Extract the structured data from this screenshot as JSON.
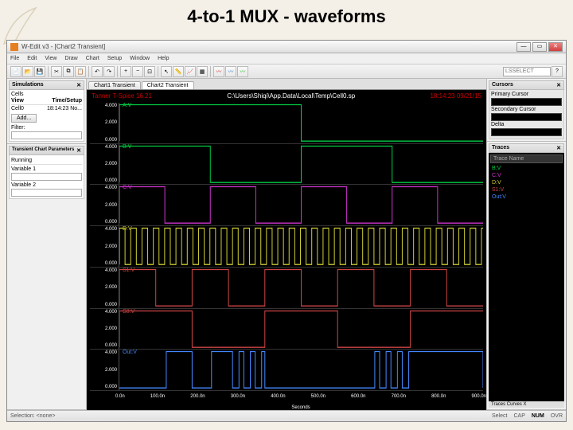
{
  "slide": {
    "title": "4-to-1 MUX - waveforms"
  },
  "window": {
    "title": "W-Edit v3 - [Chart2 Transient]",
    "menus": [
      "File",
      "Edit",
      "View",
      "Draw",
      "Chart",
      "Setup",
      "Window",
      "Help"
    ],
    "search_placeholder": "LSSELECT"
  },
  "tabs": [
    "Chart1 Transient",
    "Chart2 Transient"
  ],
  "chart_header": {
    "tanner": "Tanner T-Spice 16.21",
    "path": "C:\\Users\\Shiqi\\App.Data\\Local\\Temp\\Cell0.sp",
    "timestamp": "18:14:23 09/21/15"
  },
  "yaxis": {
    "ticks": [
      "4.000",
      "2.000",
      "0.000"
    ],
    "label": "Volts"
  },
  "xaxis": {
    "ticks": [
      "0.0n",
      "100.0n",
      "200.0n",
      "300.0n",
      "400.0n",
      "500.0n",
      "600.0n",
      "700.0n",
      "800.0n",
      "900.0n"
    ],
    "label": "Seconds"
  },
  "waves": [
    {
      "name": "A:V",
      "color": "#00cc44",
      "period": 900,
      "type": "clock"
    },
    {
      "name": "B:V",
      "color": "#00cc44",
      "period": 450,
      "type": "clock"
    },
    {
      "name": "C:V",
      "color": "#cc33cc",
      "period": 225,
      "type": "clock"
    },
    {
      "name": "D:V",
      "color": "#cccc33",
      "period": 28,
      "type": "clock"
    },
    {
      "name": "S1:V",
      "color": "#cc4444",
      "period": 180,
      "type": "clock"
    },
    {
      "name": "S0:V",
      "color": "#cc4444",
      "period": 360,
      "type": "clock"
    },
    {
      "name": "Out:V",
      "color": "#4488ff",
      "period": 0,
      "type": "mux"
    }
  ],
  "left_panel": {
    "sim_title": "Simulations",
    "cells_label": "Cells",
    "view_col": "View",
    "time_col": "Time/Setup",
    "cell_name": "Cell0",
    "cell_time": "18:14:23 No...",
    "add_btn": "Add...",
    "filter_label": "Filter:",
    "params_title": "Transient Chart Parameters",
    "running_label": "Running",
    "var1_label": "Variable 1",
    "var2_label": "Variable 2"
  },
  "right_panel": {
    "cursors_title": "Cursors",
    "primary_label": "Primary Cursor",
    "secondary_label": "Secondary Cursor",
    "delta_label": "Delta",
    "traces_title": "Traces",
    "trace_header": "Trace Name",
    "traces": [
      {
        "label": "B:V",
        "color": "#00cc44"
      },
      {
        "label": "C:V",
        "color": "#cc33cc"
      },
      {
        "label": "D:V",
        "color": "#cccc33"
      },
      {
        "label": "S1:V",
        "color": "#cc4444"
      },
      {
        "label": "Out:V",
        "color": "#4488ff"
      }
    ],
    "footer_tabs": "Traces  Curves  X"
  },
  "statusbar": {
    "left": "Selection: <none>",
    "select": "Select",
    "caps": "CAP",
    "num": "NUM",
    "ovr": "OVR"
  },
  "colors": {
    "chart_bg": "#000000",
    "grid": "#333333",
    "text": "#ffffff"
  }
}
